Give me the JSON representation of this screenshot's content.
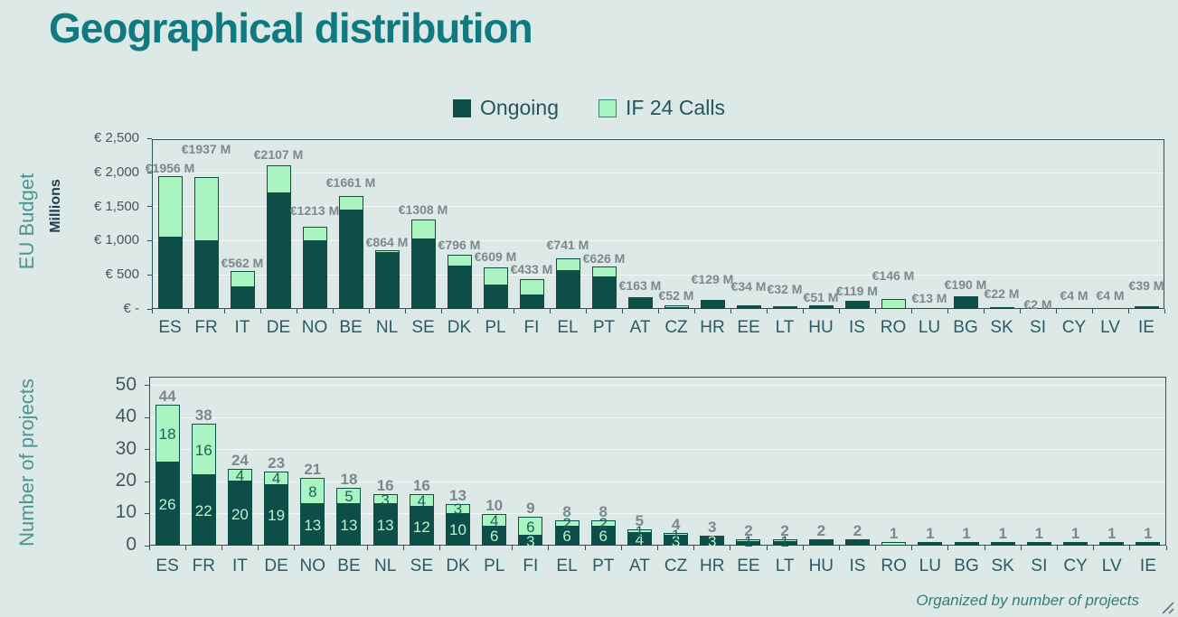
{
  "title": "Geographical distribution",
  "legend": {
    "items": [
      {
        "label": "Ongoing",
        "color": "#0d4e48"
      },
      {
        "label": "IF 24 Calls",
        "color": "#aaf4c2"
      }
    ]
  },
  "axis_titles": {
    "budget": "EU Budget",
    "budget_units": "Millions",
    "projects": "Number of projects"
  },
  "footer": "Organized by number of projects",
  "colors": {
    "background": "#dce9e6",
    "ongoing": "#0d4e48",
    "if24": "#aaf4c2",
    "segment_outline": "#0d4e48",
    "axis_line": "#2e505a",
    "gridline": "#f2faf7",
    "title": "#117a80",
    "total_label": "#7b898e",
    "ytick_label": "#47565e",
    "category_label": "#2a5b66",
    "axis_title": "#4e9590",
    "units_title": "#1c3d4b",
    "footer": "#2e7f7c",
    "label_on_dark": "#bdf2d2",
    "label_on_light": "#17635c"
  },
  "chart_data": [
    {
      "type": "bar",
      "stacked": true,
      "title": "EU Budget (Millions)",
      "ylabel": "EU Budget",
      "units": "Millions",
      "categories": [
        "ES",
        "FR",
        "IT",
        "DE",
        "NO",
        "BE",
        "NL",
        "SE",
        "DK",
        "PL",
        "FI",
        "EL",
        "PT",
        "AT",
        "CZ",
        "HR",
        "EE",
        "LT",
        "HU",
        "IS",
        "RO",
        "LU",
        "BG",
        "SK",
        "SI",
        "CY",
        "LV",
        "IE"
      ],
      "series": [
        {
          "name": "Ongoing",
          "values": [
            1050,
            990,
            315,
            1700,
            990,
            1440,
            820,
            1025,
            620,
            340,
            195,
            560,
            470,
            155,
            15,
            129,
            30,
            8,
            51,
            119,
            0,
            13,
            190,
            22,
            2,
            4,
            4,
            39
          ]
        },
        {
          "name": "IF 24 Calls",
          "values": [
            906,
            947,
            247,
            407,
            223,
            221,
            44,
            283,
            176,
            269,
            238,
            181,
            156,
            8,
            37,
            0,
            4,
            24,
            0,
            0,
            146,
            0,
            0,
            0,
            0,
            0,
            0,
            0
          ]
        }
      ],
      "totals": [
        1956,
        1937,
        562,
        2107,
        1213,
        1661,
        864,
        1308,
        796,
        609,
        433,
        741,
        626,
        163,
        52,
        129,
        34,
        32,
        51,
        119,
        146,
        13,
        190,
        22,
        2,
        4,
        4,
        39
      ],
      "total_labels": [
        "€1956 M",
        "€1937 M",
        "€562 M",
        "€2107 M",
        "€1213 M",
        "€1661 M",
        "€864 M",
        "€1308 M",
        "€796 M",
        "€609 M",
        "€433 M",
        "€741 M",
        "€626 M",
        "€163 M",
        "€52 M",
        "€129 M",
        "€34 M",
        "€32 M",
        "€51 M",
        "€119 M",
        "€146 M",
        "€13 M",
        "€190 M",
        "€22 M",
        "€2 M",
        "€4 M",
        "€4 M",
        "€39 M"
      ],
      "ytick_values": [
        0,
        500,
        1000,
        1500,
        2000,
        2500
      ],
      "ytick_labels": [
        "€ -",
        "€ 500",
        "€ 1,000",
        "€ 1,500",
        "€ 2,000",
        "€ 2,500"
      ],
      "ylim": [
        0,
        2500
      ],
      "grid": "horizontal",
      "legend_position": "top-center",
      "label_dy": [
        0,
        -22,
        0,
        -3,
        -9,
        -6,
        0,
        -2,
        -2,
        -3,
        -2,
        -6,
        0,
        -5,
        -2,
        -14,
        -13,
        -11,
        0,
        -2,
        -17,
        -2,
        -4,
        -6,
        4,
        -6,
        -6,
        -14
      ]
    },
    {
      "type": "bar",
      "stacked": true,
      "title": "Number of projects",
      "ylabel": "Number of projects",
      "categories": [
        "ES",
        "FR",
        "IT",
        "DE",
        "NO",
        "BE",
        "NL",
        "SE",
        "DK",
        "PL",
        "FI",
        "EL",
        "PT",
        "AT",
        "CZ",
        "HR",
        "EE",
        "LT",
        "HU",
        "IS",
        "RO",
        "LU",
        "BG",
        "SK",
        "SI",
        "CY",
        "LV",
        "IE"
      ],
      "series": [
        {
          "name": "Ongoing",
          "values": [
            26,
            22,
            20,
            19,
            13,
            13,
            13,
            12,
            10,
            6,
            3,
            6,
            6,
            4,
            3,
            3,
            1,
            1,
            2,
            2,
            0,
            1,
            1,
            1,
            1,
            1,
            1,
            1
          ]
        },
        {
          "name": "IF 24 Calls",
          "values": [
            18,
            16,
            4,
            4,
            8,
            5,
            3,
            4,
            3,
            4,
            6,
            2,
            2,
            1,
            1,
            0,
            1,
            1,
            0,
            0,
            1,
            0,
            0,
            0,
            0,
            0,
            0,
            0
          ]
        }
      ],
      "totals": [
        44,
        38,
        24,
        23,
        21,
        18,
        16,
        16,
        13,
        10,
        9,
        8,
        8,
        5,
        4,
        3,
        2,
        2,
        2,
        2,
        1,
        1,
        1,
        1,
        1,
        1,
        1,
        1
      ],
      "total_labels": [
        "44",
        "38",
        "24",
        "23",
        "21",
        "18",
        "16",
        "16",
        "13",
        "10",
        "9",
        "8",
        "8",
        "5",
        "4",
        "3",
        "2",
        "2",
        "2",
        "2",
        "1",
        "1",
        "1",
        "1",
        "1",
        "1",
        "1",
        "1"
      ],
      "segment_labels": {
        "ongoing": [
          "26",
          "22",
          "20",
          "19",
          "13",
          "13",
          "13",
          "12",
          "10",
          "6",
          "3",
          "6",
          "6",
          "4",
          "3",
          "3",
          "",
          "",
          "",
          "",
          "",
          "",
          "",
          "",
          "",
          "",
          "",
          ""
        ],
        "if24": [
          "18",
          "16",
          "4",
          "4",
          "8",
          "5",
          "3",
          "4",
          "3",
          "4",
          "6",
          "2",
          "2",
          "1",
          "1",
          "",
          "1",
          "1",
          "",
          "",
          "",
          "",
          "",
          "",
          "",
          "",
          "",
          ""
        ]
      },
      "ytick_values": [
        0,
        10,
        20,
        30,
        40,
        50
      ],
      "ytick_labels": [
        "0",
        "10",
        "20",
        "30",
        "40",
        "50"
      ],
      "ylim": [
        0,
        50
      ],
      "grid": "horizontal",
      "footnote": "Organized by number of projects"
    }
  ]
}
